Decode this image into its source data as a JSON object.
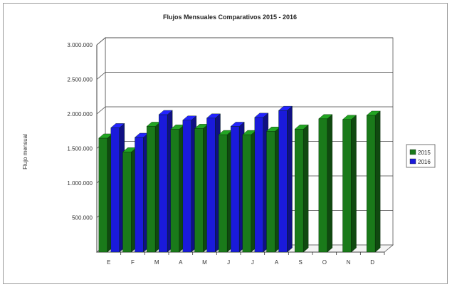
{
  "chart_data": {
    "type": "bar",
    "title": "Flujos Mensuales Comparativos 2015 - 2016",
    "xlabel": "",
    "ylabel": "Flujo mensual",
    "categories": [
      "E",
      "F",
      "M",
      "A",
      "M",
      "J",
      "J",
      "A",
      "S",
      "O",
      "N",
      "D"
    ],
    "series": [
      {
        "name": "2015",
        "color": "#1a7a1a",
        "values": [
          1650000,
          1450000,
          1820000,
          1780000,
          1790000,
          1700000,
          1700000,
          1750000,
          1780000,
          1930000,
          1920000,
          1980000
        ]
      },
      {
        "name": "2016",
        "color": "#1a1adb",
        "values": [
          1800000,
          1660000,
          1990000,
          1910000,
          1940000,
          1820000,
          1950000,
          2050000,
          null,
          null,
          null,
          null
        ]
      }
    ],
    "ylim": [
      0,
      3000000
    ],
    "yticks": [
      "3.000.000",
      "2.500.000",
      "2.000.000",
      "1.500.000",
      "1.000.000",
      "500.000"
    ],
    "grid": true,
    "legend_position": "right"
  }
}
